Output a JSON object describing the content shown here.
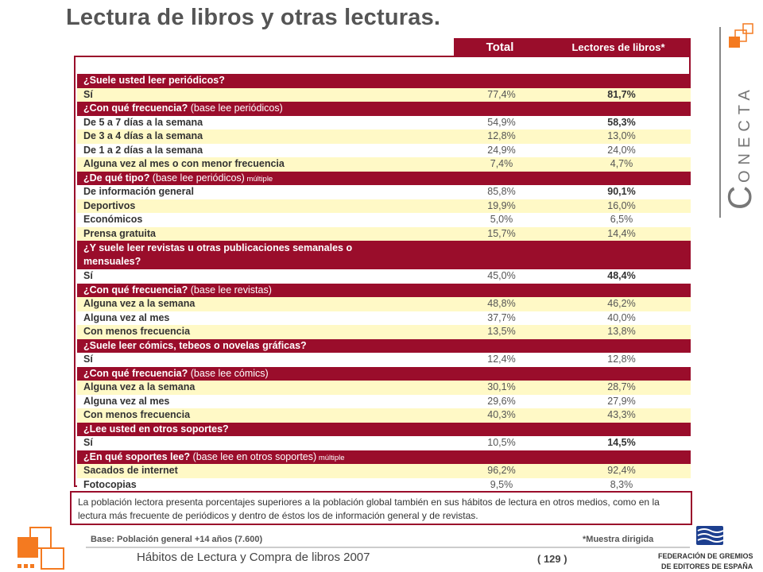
{
  "title": "Lectura de libros y otras lecturas.",
  "columns": {
    "total": "Total",
    "lectores": "Lectores de libros*"
  },
  "rows": [
    {
      "kind": "section",
      "label": "¿Suele usted leer periódicos?",
      "extra": "",
      "small": ""
    },
    {
      "kind": "data",
      "label": "Sí",
      "total": "77,4%",
      "lectores": "81,7%",
      "bold": true
    },
    {
      "kind": "section",
      "label": "¿Con qué frecuencia?",
      "extra": " (base lee periódicos)",
      "small": ""
    },
    {
      "kind": "data",
      "label": "De 5 a 7 días a la semana",
      "total": "54,9%",
      "lectores": "58,3%",
      "bold": true
    },
    {
      "kind": "data",
      "label": "De 3 a 4 días a la semana",
      "total": "12,8%",
      "lectores": "13,0%",
      "bold": false
    },
    {
      "kind": "data",
      "label": "De 1 a 2 días a la semana",
      "total": "24,9%",
      "lectores": "24,0%",
      "bold": false
    },
    {
      "kind": "data",
      "label": "Alguna vez al mes o con menor frecuencia",
      "total": "7,4%",
      "lectores": "4,7%",
      "bold": false
    },
    {
      "kind": "section",
      "label": "¿De qué tipo?",
      "extra": " (base lee periódicos)",
      "small": " múltiple"
    },
    {
      "kind": "data",
      "label": "De información general",
      "total": "85,8%",
      "lectores": "90,1%",
      "bold": true
    },
    {
      "kind": "data",
      "label": "Deportivos",
      "total": "19,9%",
      "lectores": "16,0%",
      "bold": false
    },
    {
      "kind": "data",
      "label": "Económicos",
      "total": "5,0%",
      "lectores": "6,5%",
      "bold": false
    },
    {
      "kind": "data",
      "label": "Prensa gratuita",
      "total": "15,7%",
      "lectores": "14,4%",
      "bold": false
    },
    {
      "kind": "section2",
      "label": "¿Y suele leer revistas u otras publicaciones semanales o",
      "label2": "mensuales?",
      "extra": "",
      "small": ""
    },
    {
      "kind": "data",
      "label": "Sí",
      "total": "45,0%",
      "lectores": "48,4%",
      "bold": true
    },
    {
      "kind": "section",
      "label": "¿Con qué frecuencia?",
      "extra": " (base lee revistas)",
      "small": ""
    },
    {
      "kind": "data",
      "label": "Alguna vez a la semana",
      "total": "48,8%",
      "lectores": "46,2%",
      "bold": false
    },
    {
      "kind": "data",
      "label": "Alguna vez al mes",
      "total": "37,7%",
      "lectores": "40,0%",
      "bold": false
    },
    {
      "kind": "data",
      "label": "Con menos frecuencia",
      "total": "13,5%",
      "lectores": "13,8%",
      "bold": false
    },
    {
      "kind": "section",
      "label": "¿Suele leer cómics, tebeos o novelas gráficas?",
      "extra": "",
      "small": ""
    },
    {
      "kind": "data",
      "label": "Sí",
      "total": "12,4%",
      "lectores": "12,8%",
      "bold": false
    },
    {
      "kind": "section",
      "label": "¿Con qué frecuencia?",
      "extra": " (base lee cómics)",
      "small": ""
    },
    {
      "kind": "data",
      "label": "Alguna vez a la semana",
      "total": "30,1%",
      "lectores": "28,7%",
      "bold": false
    },
    {
      "kind": "data",
      "label": "Alguna vez al mes",
      "total": "29,6%",
      "lectores": "27,9%",
      "bold": false
    },
    {
      "kind": "data",
      "label": "Con menos frecuencia",
      "total": "40,3%",
      "lectores": "43,3%",
      "bold": false
    },
    {
      "kind": "section",
      "label": "¿Lee usted en otros soportes?",
      "extra": "",
      "small": ""
    },
    {
      "kind": "data",
      "label": "Sí",
      "total": "10,5%",
      "lectores": "14,5%",
      "bold": true
    },
    {
      "kind": "section",
      "label": "¿En qué soportes lee?",
      "extra": " (base lee en otros soportes)",
      "small": " múltiple"
    },
    {
      "kind": "data",
      "label": "Sacados de internet",
      "total": "96,2%",
      "lectores": "92,4%",
      "bold": false
    },
    {
      "kind": "data",
      "label": "Fotocopias",
      "total": "9,5%",
      "lectores": "8,3%",
      "bold": false
    }
  ],
  "note": "La población lectora presenta porcentajes superiores a la población global también en sus hábitos de lectura en otros medios, como en la lectura más frecuente de periódicos y dentro de éstos los de información general y de revistas.",
  "base": "Base:  Población general +14 años (7.600)",
  "muestra": "*Muestra dirigida",
  "footer": "Hábitos de Lectura y Compra de libros 2007",
  "page": "( 129 )",
  "brand": {
    "first": "C",
    "rest": "ONECTA"
  },
  "federation": {
    "line1": "FEDERACIÓN DE GREMIOS",
    "line2": "DE EDITORES DE ESPAÑA"
  },
  "colors": {
    "accent": "#9a0d2b",
    "highlight": "#fff9c6",
    "orange": "#f47a20"
  }
}
